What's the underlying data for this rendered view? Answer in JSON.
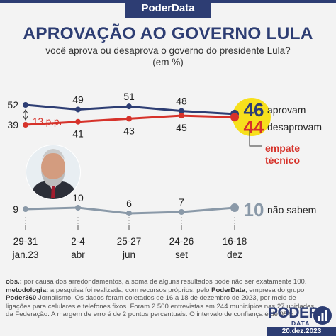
{
  "brand": "PoderData",
  "title": "APROVAÇÃO AO GOVERNO LULA",
  "subtitle": "você aprova ou desaprova o governo do presidente Lula?",
  "unit": "(em %)",
  "chart_data": {
    "type": "line",
    "x": [
      "29-31 jan.23",
      "2-4 abr",
      "25-27 jun",
      "24-26 set",
      "16-18 dez"
    ],
    "x_top": [
      "29-31",
      "2-4",
      "25-27",
      "24-26",
      "16-18"
    ],
    "x_bottom": [
      "jan.23",
      "abr",
      "jun",
      "set",
      "dez"
    ],
    "series": [
      {
        "name": "aprovam",
        "values": [
          52,
          49,
          51,
          48,
          46
        ],
        "color": "#2d3d73"
      },
      {
        "name": "desaprovam",
        "values": [
          39,
          41,
          43,
          45,
          44
        ],
        "color": "#d6322a"
      },
      {
        "name": "não sabem",
        "values": [
          9,
          10,
          6,
          7,
          10
        ],
        "color": "#8a99a8"
      }
    ],
    "annotations": {
      "gap": "13 p.p.",
      "tie_line1": "empate",
      "tie_line2": "técnico"
    },
    "highlight_color": "#f7e01c"
  },
  "notes": {
    "obs_label": "obs.:",
    "obs_text": "por causa dos arredondamentos, a soma de alguns resultados pode não ser exatamente 100.",
    "met_label": "metodologia:",
    "met_text_1": "a pesquisa foi realizada, com recursos próprios, pelo",
    "met_brand": "PoderData",
    "met_text_2": ", empresa do grupo",
    "met_brand2": "Poder360",
    "met_text_3": "Jornalismo. Os dados foram coletados de 16 a 18 de dezembro de 2023, por meio de ligações para celulares e telefones fixos. Foram 2.500 entrevistas em 244 municípios nas 27 unidades da Federação. A margem de erro é de 2 pontos percentuais. O intervalo de confiança é de 95%."
  },
  "logo_top": "PODER",
  "logo_bottom": "DATA",
  "date": "20.dez.2023"
}
